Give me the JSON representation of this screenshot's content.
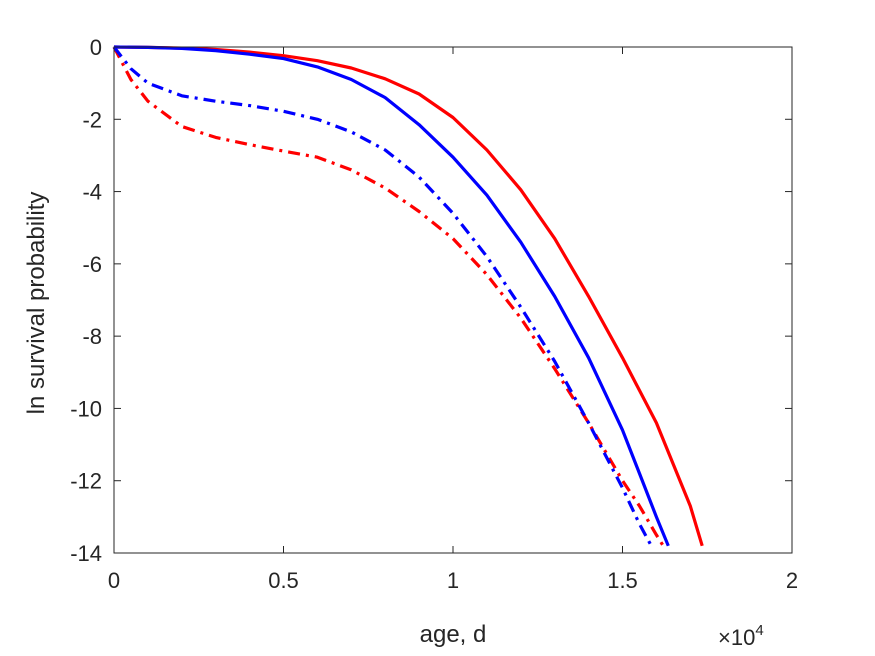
{
  "chart_data": {
    "type": "line",
    "xlabel": "age, d",
    "ylabel": "ln survival probability",
    "x_exponent_label": {
      "base": "×10",
      "exp": "4"
    },
    "xlim": [
      0,
      2
    ],
    "ylim": [
      -14,
      0
    ],
    "xticks": [
      "0",
      "0.5",
      "1",
      "1.5",
      "2"
    ],
    "xtick_values": [
      0,
      0.5,
      1,
      1.5,
      2
    ],
    "yticks": [
      "0",
      "-2",
      "-4",
      "-6",
      "-8",
      "-10",
      "-12",
      "-14"
    ],
    "ytick_values": [
      0,
      -2,
      -4,
      -6,
      -8,
      -10,
      -12,
      -14
    ],
    "grid": false,
    "series": [
      {
        "color": "#ff0000",
        "style": "solid",
        "x": [
          0,
          0.1,
          0.2,
          0.3,
          0.4,
          0.5,
          0.6,
          0.7,
          0.8,
          0.9,
          1.0,
          1.1,
          1.2,
          1.3,
          1.4,
          1.5,
          1.6,
          1.7,
          1.735
        ],
        "y": [
          0,
          -0.01,
          -0.03,
          -0.07,
          -0.14,
          -0.24,
          -0.38,
          -0.58,
          -0.88,
          -1.3,
          -1.95,
          -2.85,
          -3.95,
          -5.3,
          -6.9,
          -8.6,
          -10.4,
          -12.7,
          -13.8
        ]
      },
      {
        "color": "#0000ff",
        "style": "solid",
        "x": [
          0,
          0.1,
          0.2,
          0.3,
          0.4,
          0.5,
          0.6,
          0.7,
          0.8,
          0.9,
          1.0,
          1.1,
          1.2,
          1.3,
          1.4,
          1.5,
          1.55,
          1.6,
          1.635
        ],
        "y": [
          0,
          -0.01,
          -0.04,
          -0.1,
          -0.2,
          -0.32,
          -0.55,
          -0.9,
          -1.4,
          -2.15,
          -3.05,
          -4.1,
          -5.4,
          -6.9,
          -8.6,
          -10.6,
          -11.8,
          -13.0,
          -13.8
        ]
      },
      {
        "color": "#ff0000",
        "style": "dashdot",
        "x": [
          0,
          0.05,
          0.1,
          0.2,
          0.3,
          0.4,
          0.5,
          0.6,
          0.7,
          0.8,
          0.9,
          1.0,
          1.1,
          1.2,
          1.3,
          1.4,
          1.5,
          1.55,
          1.6,
          1.62
        ],
        "y": [
          0,
          -0.9,
          -1.5,
          -2.2,
          -2.5,
          -2.7,
          -2.88,
          -3.05,
          -3.4,
          -3.9,
          -4.55,
          -5.3,
          -6.3,
          -7.5,
          -8.9,
          -10.4,
          -12.0,
          -12.7,
          -13.5,
          -13.8
        ]
      },
      {
        "color": "#0000ff",
        "style": "dashdot",
        "x": [
          0,
          0.05,
          0.1,
          0.2,
          0.3,
          0.4,
          0.5,
          0.6,
          0.7,
          0.8,
          0.9,
          1.0,
          1.1,
          1.2,
          1.3,
          1.4,
          1.5,
          1.55,
          1.585
        ],
        "y": [
          0,
          -0.6,
          -1.0,
          -1.35,
          -1.5,
          -1.62,
          -1.78,
          -2.0,
          -2.35,
          -2.85,
          -3.6,
          -4.6,
          -5.8,
          -7.2,
          -8.7,
          -10.4,
          -12.2,
          -13.2,
          -13.8
        ]
      }
    ]
  }
}
